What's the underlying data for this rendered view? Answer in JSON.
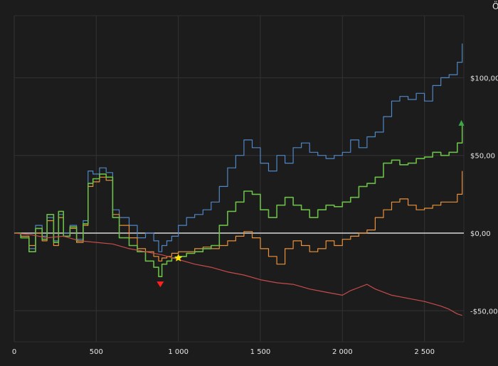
{
  "chart_data": {
    "type": "line",
    "title": "",
    "xlabel": "",
    "ylabel": "",
    "xlim": [
      0,
      2740
    ],
    "ylim": [
      -70,
      140
    ],
    "x_ticks": [
      {
        "value": 0,
        "label": "0"
      },
      {
        "value": 500,
        "label": "500"
      },
      {
        "value": 1000,
        "label": "1 000"
      },
      {
        "value": 1500,
        "label": "1 500"
      },
      {
        "value": 2000,
        "label": "2 000"
      },
      {
        "value": 2500,
        "label": "2 500"
      }
    ],
    "y_ticks": [
      {
        "value": 100,
        "label": "$100,00"
      },
      {
        "value": 50,
        "label": "$50,00"
      },
      {
        "value": 0,
        "label": "$0,00"
      },
      {
        "value": -50,
        "label": "-$50,00"
      }
    ],
    "grid": true,
    "zero_line": 0,
    "series": [
      {
        "color": "#4f86c6",
        "step": true,
        "points": [
          [
            0,
            0
          ],
          [
            40,
            -3
          ],
          [
            90,
            -10
          ],
          [
            130,
            5
          ],
          [
            170,
            -2
          ],
          [
            200,
            10
          ],
          [
            240,
            -5
          ],
          [
            270,
            12
          ],
          [
            300,
            0
          ],
          [
            340,
            5
          ],
          [
            380,
            -4
          ],
          [
            420,
            8
          ],
          [
            450,
            40
          ],
          [
            480,
            38
          ],
          [
            520,
            42
          ],
          [
            560,
            39
          ],
          [
            600,
            15
          ],
          [
            640,
            10
          ],
          [
            700,
            5
          ],
          [
            750,
            -3
          ],
          [
            800,
            0
          ],
          [
            850,
            -5
          ],
          [
            880,
            -12
          ],
          [
            900,
            -8
          ],
          [
            930,
            -5
          ],
          [
            960,
            -2
          ],
          [
            1000,
            5
          ],
          [
            1050,
            10
          ],
          [
            1100,
            12
          ],
          [
            1150,
            15
          ],
          [
            1200,
            20
          ],
          [
            1250,
            30
          ],
          [
            1300,
            42
          ],
          [
            1350,
            50
          ],
          [
            1400,
            60
          ],
          [
            1450,
            55
          ],
          [
            1500,
            45
          ],
          [
            1550,
            40
          ],
          [
            1600,
            50
          ],
          [
            1650,
            45
          ],
          [
            1700,
            55
          ],
          [
            1750,
            58
          ],
          [
            1800,
            52
          ],
          [
            1850,
            50
          ],
          [
            1900,
            48
          ],
          [
            1950,
            50
          ],
          [
            2000,
            52
          ],
          [
            2050,
            60
          ],
          [
            2100,
            55
          ],
          [
            2150,
            62
          ],
          [
            2200,
            65
          ],
          [
            2250,
            75
          ],
          [
            2300,
            85
          ],
          [
            2350,
            88
          ],
          [
            2400,
            86
          ],
          [
            2450,
            90
          ],
          [
            2500,
            85
          ],
          [
            2550,
            95
          ],
          [
            2600,
            100
          ],
          [
            2650,
            102
          ],
          [
            2700,
            110
          ],
          [
            2730,
            122
          ]
        ]
      },
      {
        "color": "#e8913a",
        "step": true,
        "points": [
          [
            0,
            0
          ],
          [
            40,
            -2
          ],
          [
            90,
            -8
          ],
          [
            130,
            0
          ],
          [
            170,
            -5
          ],
          [
            200,
            8
          ],
          [
            240,
            -8
          ],
          [
            270,
            10
          ],
          [
            300,
            -2
          ],
          [
            340,
            3
          ],
          [
            380,
            -6
          ],
          [
            420,
            5
          ],
          [
            450,
            30
          ],
          [
            480,
            33
          ],
          [
            520,
            36
          ],
          [
            560,
            34
          ],
          [
            600,
            12
          ],
          [
            640,
            5
          ],
          [
            700,
            -3
          ],
          [
            750,
            -10
          ],
          [
            800,
            -12
          ],
          [
            850,
            -15
          ],
          [
            880,
            -18
          ],
          [
            900,
            -16
          ],
          [
            930,
            -15
          ],
          [
            960,
            -13
          ],
          [
            1000,
            -12
          ],
          [
            1050,
            -12
          ],
          [
            1100,
            -10
          ],
          [
            1150,
            -9
          ],
          [
            1200,
            -10
          ],
          [
            1250,
            -8
          ],
          [
            1300,
            -5
          ],
          [
            1350,
            -2
          ],
          [
            1400,
            1
          ],
          [
            1450,
            -3
          ],
          [
            1500,
            -10
          ],
          [
            1550,
            -15
          ],
          [
            1600,
            -20
          ],
          [
            1650,
            -10
          ],
          [
            1700,
            -5
          ],
          [
            1750,
            -8
          ],
          [
            1800,
            -12
          ],
          [
            1850,
            -10
          ],
          [
            1900,
            -5
          ],
          [
            1950,
            -8
          ],
          [
            2000,
            -4
          ],
          [
            2050,
            -2
          ],
          [
            2100,
            0
          ],
          [
            2150,
            2
          ],
          [
            2200,
            10
          ],
          [
            2250,
            15
          ],
          [
            2300,
            20
          ],
          [
            2350,
            22
          ],
          [
            2400,
            18
          ],
          [
            2450,
            15
          ],
          [
            2500,
            16
          ],
          [
            2550,
            18
          ],
          [
            2600,
            20
          ],
          [
            2650,
            20
          ],
          [
            2700,
            25
          ],
          [
            2730,
            40
          ]
        ]
      },
      {
        "color": "#6abf46",
        "step": true,
        "points": [
          [
            0,
            0
          ],
          [
            40,
            -3
          ],
          [
            90,
            -12
          ],
          [
            130,
            3
          ],
          [
            170,
            -4
          ],
          [
            200,
            12
          ],
          [
            240,
            -6
          ],
          [
            270,
            14
          ],
          [
            300,
            -2
          ],
          [
            340,
            4
          ],
          [
            380,
            -5
          ],
          [
            420,
            6
          ],
          [
            450,
            32
          ],
          [
            480,
            35
          ],
          [
            520,
            38
          ],
          [
            560,
            36
          ],
          [
            600,
            10
          ],
          [
            640,
            -3
          ],
          [
            700,
            -8
          ],
          [
            750,
            -12
          ],
          [
            800,
            -18
          ],
          [
            850,
            -22
          ],
          [
            880,
            -28
          ],
          [
            900,
            -20
          ],
          [
            930,
            -18
          ],
          [
            960,
            -16
          ],
          [
            1000,
            -15
          ],
          [
            1050,
            -13
          ],
          [
            1100,
            -12
          ],
          [
            1150,
            -10
          ],
          [
            1200,
            -8
          ],
          [
            1250,
            5
          ],
          [
            1300,
            14
          ],
          [
            1350,
            20
          ],
          [
            1400,
            27
          ],
          [
            1450,
            25
          ],
          [
            1500,
            15
          ],
          [
            1550,
            10
          ],
          [
            1600,
            18
          ],
          [
            1650,
            23
          ],
          [
            1700,
            18
          ],
          [
            1750,
            15
          ],
          [
            1800,
            10
          ],
          [
            1850,
            15
          ],
          [
            1900,
            18
          ],
          [
            1950,
            17
          ],
          [
            2000,
            20
          ],
          [
            2050,
            23
          ],
          [
            2100,
            30
          ],
          [
            2150,
            32
          ],
          [
            2200,
            36
          ],
          [
            2250,
            45
          ],
          [
            2300,
            47
          ],
          [
            2350,
            44
          ],
          [
            2400,
            45
          ],
          [
            2450,
            48
          ],
          [
            2500,
            49
          ],
          [
            2550,
            52
          ],
          [
            2600,
            50
          ],
          [
            2650,
            52
          ],
          [
            2700,
            58
          ],
          [
            2730,
            70
          ]
        ]
      },
      {
        "color": "#c84b4b",
        "step": false,
        "points": [
          [
            0,
            0
          ],
          [
            100,
            -1
          ],
          [
            200,
            -3
          ],
          [
            300,
            -2
          ],
          [
            400,
            -5
          ],
          [
            500,
            -6
          ],
          [
            600,
            -7
          ],
          [
            700,
            -10
          ],
          [
            800,
            -12
          ],
          [
            900,
            -14
          ],
          [
            1000,
            -17
          ],
          [
            1100,
            -20
          ],
          [
            1200,
            -22
          ],
          [
            1300,
            -25
          ],
          [
            1400,
            -27
          ],
          [
            1500,
            -30
          ],
          [
            1600,
            -32
          ],
          [
            1700,
            -33
          ],
          [
            1800,
            -36
          ],
          [
            1900,
            -38
          ],
          [
            2000,
            -40
          ],
          [
            2050,
            -37
          ],
          [
            2100,
            -35
          ],
          [
            2150,
            -33
          ],
          [
            2200,
            -36
          ],
          [
            2300,
            -40
          ],
          [
            2400,
            -42
          ],
          [
            2500,
            -44
          ],
          [
            2600,
            -47
          ],
          [
            2650,
            -49
          ],
          [
            2700,
            -52
          ],
          [
            2730,
            -53
          ]
        ]
      }
    ],
    "markers": [
      {
        "type": "triangle-down",
        "x": 890,
        "y": -33,
        "color": "#ff2020"
      },
      {
        "type": "star",
        "x": 1000,
        "y": -16,
        "color": "#ffe600"
      },
      {
        "type": "triangle-up",
        "x": 2725,
        "y": 71,
        "color": "#3aa845"
      }
    ]
  },
  "corner_glyph": "Ö"
}
